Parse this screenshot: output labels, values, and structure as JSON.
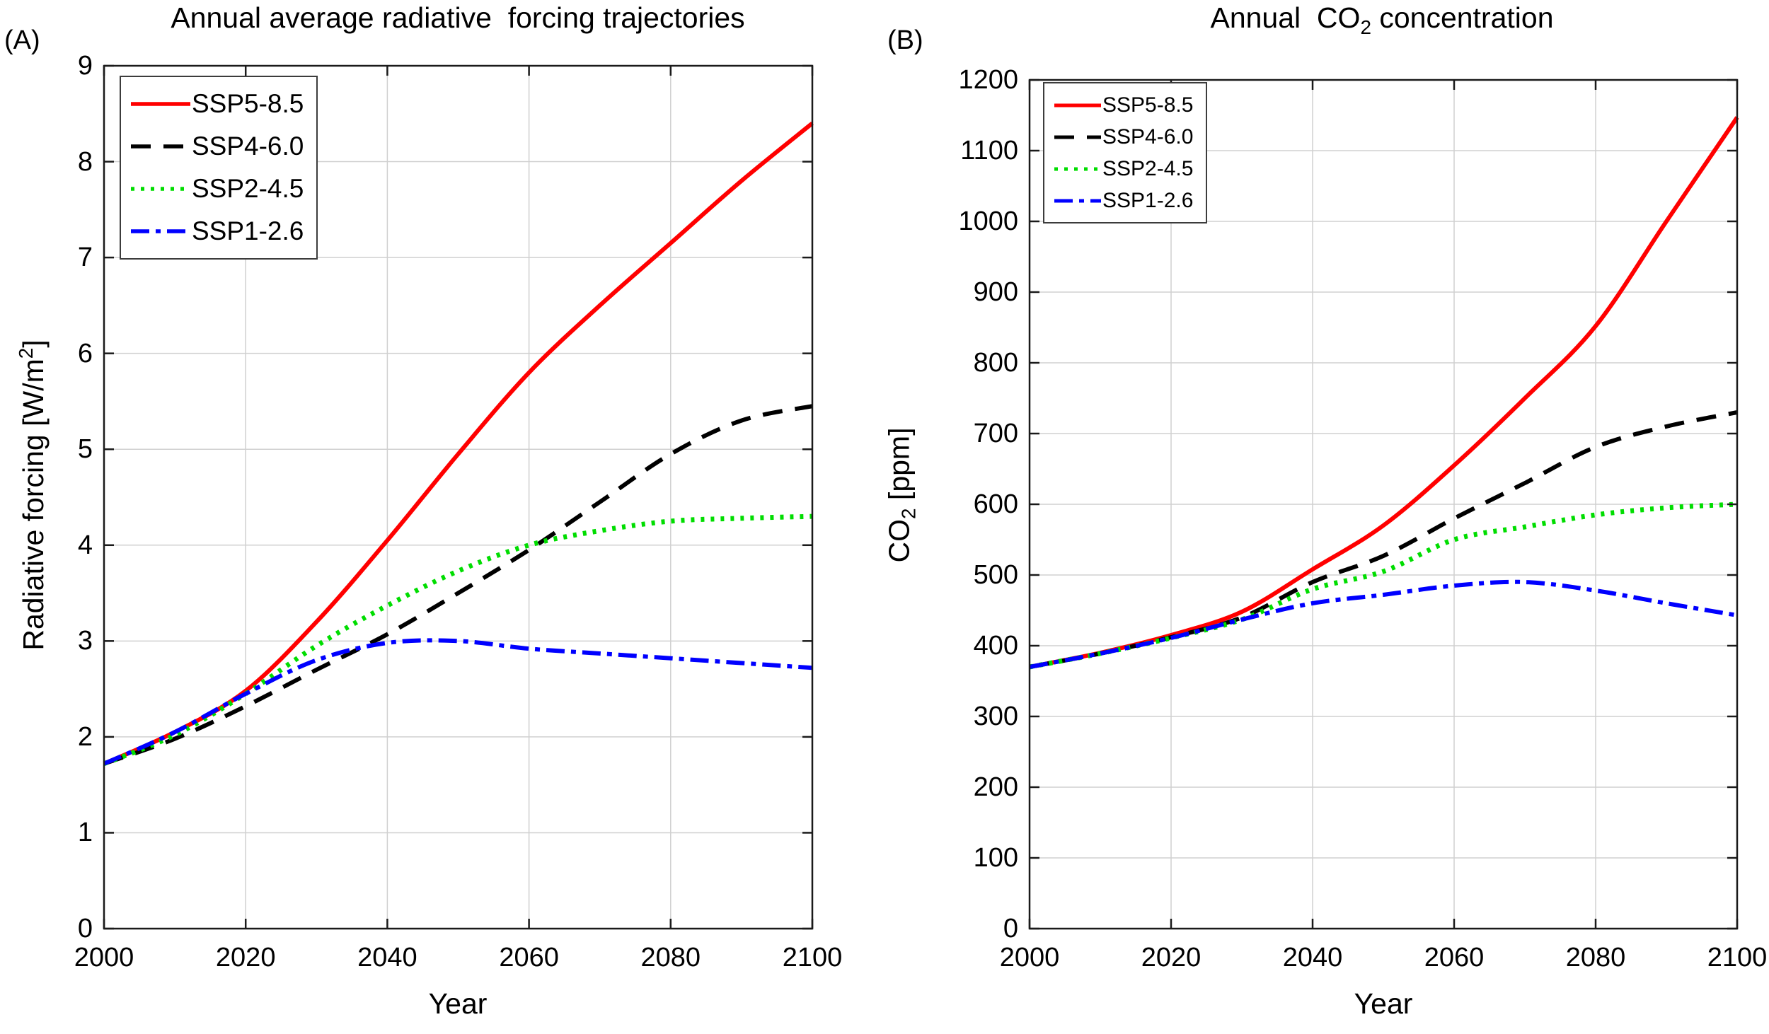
{
  "figure_type": "two-panel SSP scenario projection line charts",
  "colors": {
    "grid": "#d0d0d0",
    "axis": "#1a1a1a",
    "background": "#ffffff",
    "ssp5": "#ff0000",
    "ssp4": "#000000",
    "ssp2": "#00dd00",
    "ssp1": "#0000ff"
  },
  "chart_data": [
    {
      "type": "line",
      "panel_label": "(A)",
      "title": "Annual average radiative  forcing trajectories",
      "xlabel": "Year",
      "ylabel": "Radiative forcing [W/m2]",
      "ylabel_parts": {
        "pre": "Radiative forcing [W/m",
        "sup": "2",
        "post": "]"
      },
      "xlim": [
        2000,
        2100
      ],
      "ylim": [
        0,
        9
      ],
      "xticks": [
        2000,
        2020,
        2040,
        2060,
        2080,
        2100
      ],
      "yticks": [
        0,
        1,
        2,
        3,
        4,
        5,
        6,
        7,
        8,
        9
      ],
      "grid": true,
      "legend_position": "top-left",
      "x": [
        2000,
        2010,
        2020,
        2030,
        2040,
        2050,
        2060,
        2070,
        2080,
        2090,
        2100
      ],
      "series": [
        {
          "name": "SSP5-8.5",
          "color": "#ff0000",
          "style": "solid",
          "values": [
            1.72,
            2.05,
            2.48,
            3.2,
            4.05,
            4.95,
            5.8,
            6.5,
            7.15,
            7.8,
            8.4
          ]
        },
        {
          "name": "SSP4-6.0",
          "color": "#000000",
          "style": "dashed",
          "values": [
            1.72,
            1.98,
            2.32,
            2.7,
            3.07,
            3.5,
            3.95,
            4.45,
            4.95,
            5.3,
            5.45
          ]
        },
        {
          "name": "SSP2-4.5",
          "color": "#00dd00",
          "style": "dotted",
          "values": [
            1.72,
            2.02,
            2.45,
            2.95,
            3.37,
            3.73,
            4.0,
            4.15,
            4.25,
            4.28,
            4.3
          ]
        },
        {
          "name": "SSP1-2.6",
          "color": "#0000ff",
          "style": "dashdot",
          "values": [
            1.72,
            2.05,
            2.45,
            2.8,
            2.98,
            3.0,
            2.92,
            2.87,
            2.82,
            2.77,
            2.72
          ]
        }
      ]
    },
    {
      "type": "line",
      "panel_label": "(B)",
      "title": "Annual  CO2 concentration",
      "title_parts": {
        "pre": "Annual  CO",
        "sub": "2",
        "post": " concentration"
      },
      "xlabel": "Year",
      "ylabel": "CO2 [ppm]",
      "ylabel_parts": {
        "pre": "CO",
        "sub": "2",
        "post": " [ppm]"
      },
      "xlim": [
        2000,
        2100
      ],
      "ylim": [
        0,
        1200
      ],
      "xticks": [
        2000,
        2020,
        2040,
        2060,
        2080,
        2100
      ],
      "yticks": [
        0,
        100,
        200,
        300,
        400,
        500,
        600,
        700,
        800,
        900,
        1000,
        1100,
        1200
      ],
      "grid": true,
      "legend_position": "top-left",
      "x": [
        2000,
        2010,
        2020,
        2030,
        2040,
        2050,
        2060,
        2070,
        2080,
        2090,
        2100
      ],
      "series": [
        {
          "name": "SSP5-8.5",
          "color": "#ff0000",
          "style": "solid",
          "values": [
            370,
            390,
            415,
            448,
            508,
            570,
            655,
            750,
            852,
            1000,
            1147
          ]
        },
        {
          "name": "SSP4-6.0",
          "color": "#000000",
          "style": "dashed",
          "values": [
            370,
            389,
            412,
            440,
            490,
            527,
            580,
            630,
            681,
            710,
            730
          ]
        },
        {
          "name": "SSP2-4.5",
          "color": "#00dd00",
          "style": "dotted",
          "values": [
            370,
            389,
            411,
            437,
            480,
            505,
            550,
            568,
            585,
            595,
            600
          ]
        },
        {
          "name": "SSP1-2.6",
          "color": "#0000ff",
          "style": "dashdot",
          "values": [
            370,
            389,
            411,
            437,
            460,
            472,
            485,
            490,
            478,
            460,
            443
          ]
        }
      ]
    }
  ]
}
